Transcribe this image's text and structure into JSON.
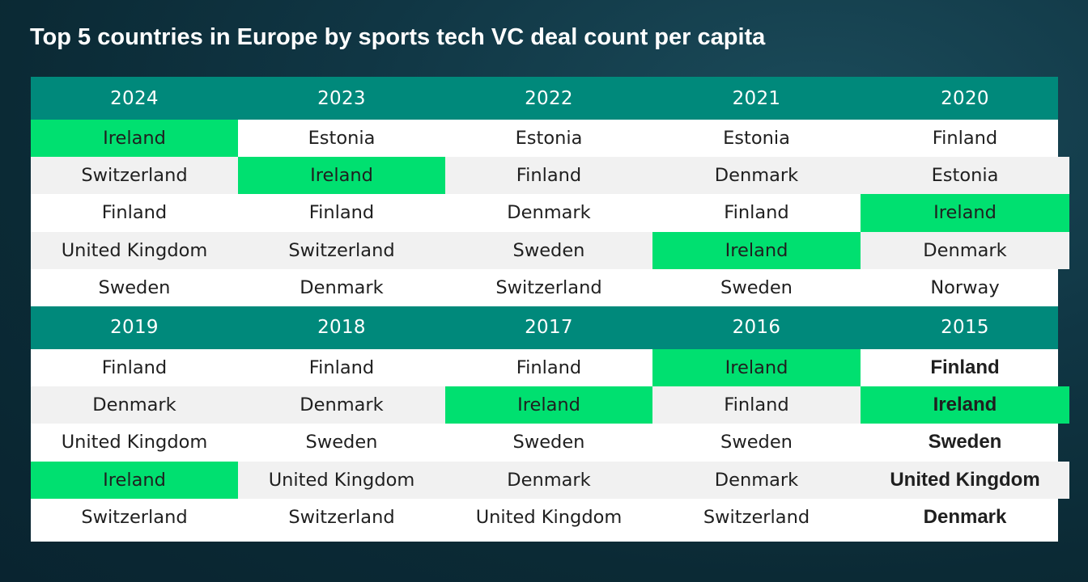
{
  "title": "Top 5 countries in Europe by sports tech VC deal count per capita",
  "colors": {
    "header": "#00897b",
    "highlight": "#00e070",
    "row_alt": "#f1f1f1",
    "background": "#0f3440"
  },
  "highlight_country": "Ireland",
  "chart_data": {
    "type": "table",
    "title": "Top 5 countries in Europe by sports tech VC deal count per capita",
    "blocks": [
      {
        "years": [
          "2024",
          "2023",
          "2022",
          "2021",
          "2020"
        ],
        "columns": [
          [
            "Ireland",
            "Switzerland",
            "Finland",
            "United Kingdom",
            "Sweden"
          ],
          [
            "Estonia",
            "Ireland",
            "Finland",
            "Switzerland",
            "Denmark"
          ],
          [
            "Estonia",
            "Finland",
            "Denmark",
            "Sweden",
            "Switzerland"
          ],
          [
            "Estonia",
            "Denmark",
            "Finland",
            "Ireland",
            "Sweden"
          ],
          [
            "Finland",
            "Estonia",
            "Ireland",
            "Denmark",
            "Norway"
          ]
        ]
      },
      {
        "years": [
          "2019",
          "2018",
          "2017",
          "2016",
          "2015"
        ],
        "columns": [
          [
            "Finland",
            "Denmark",
            "United Kingdom",
            "Ireland",
            "Switzerland"
          ],
          [
            "Finland",
            "Denmark",
            "Sweden",
            "United Kingdom",
            "Switzerland"
          ],
          [
            "Finland",
            "Ireland",
            "Sweden",
            "Denmark",
            "United Kingdom"
          ],
          [
            "Ireland",
            "Finland",
            "Sweden",
            "Denmark",
            "Switzerland"
          ],
          [
            "Finland",
            "Ireland",
            "Sweden",
            "United Kingdom",
            "Denmark"
          ]
        ]
      }
    ]
  }
}
